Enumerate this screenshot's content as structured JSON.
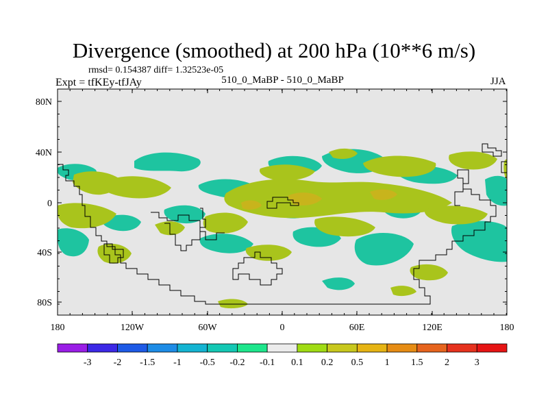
{
  "title": "Divergence (smoothed) at 200 hPa (10**6 m/s)",
  "stats": "rmsd= 0.154387 diff= 1.32523e-05",
  "left_label": "Expt = tfKEy-tfJAy",
  "center_label": "510_0_MaBP - 510_0_MaBP",
  "season": "JJA",
  "map": {
    "lat_labels": [
      "80N",
      "40N",
      "0",
      "40S",
      "80S"
    ],
    "lon_labels": [
      "180",
      "120W",
      "60W",
      "0",
      "60E",
      "120E",
      "180"
    ],
    "background_color": "#e6e6e6",
    "positive_color": "#a9c41c",
    "negative_color": "#1ec4a0"
  },
  "colorbar": {
    "labels": [
      "-3",
      "-2",
      "-1.5",
      "-1",
      "-0.5",
      "-0.2",
      "-0.1",
      "0.1",
      "0.2",
      "0.5",
      "1",
      "1.5",
      "2",
      "3"
    ],
    "colors": [
      "#9a1ee6",
      "#3c28e6",
      "#1e5ae6",
      "#1e8ce6",
      "#14b4d2",
      "#14c8b4",
      "#1ee68c",
      "#ececec",
      "#a0dc14",
      "#c8c81e",
      "#e6b414",
      "#e68c14",
      "#e6641e",
      "#e6321e",
      "#e61414"
    ]
  }
}
